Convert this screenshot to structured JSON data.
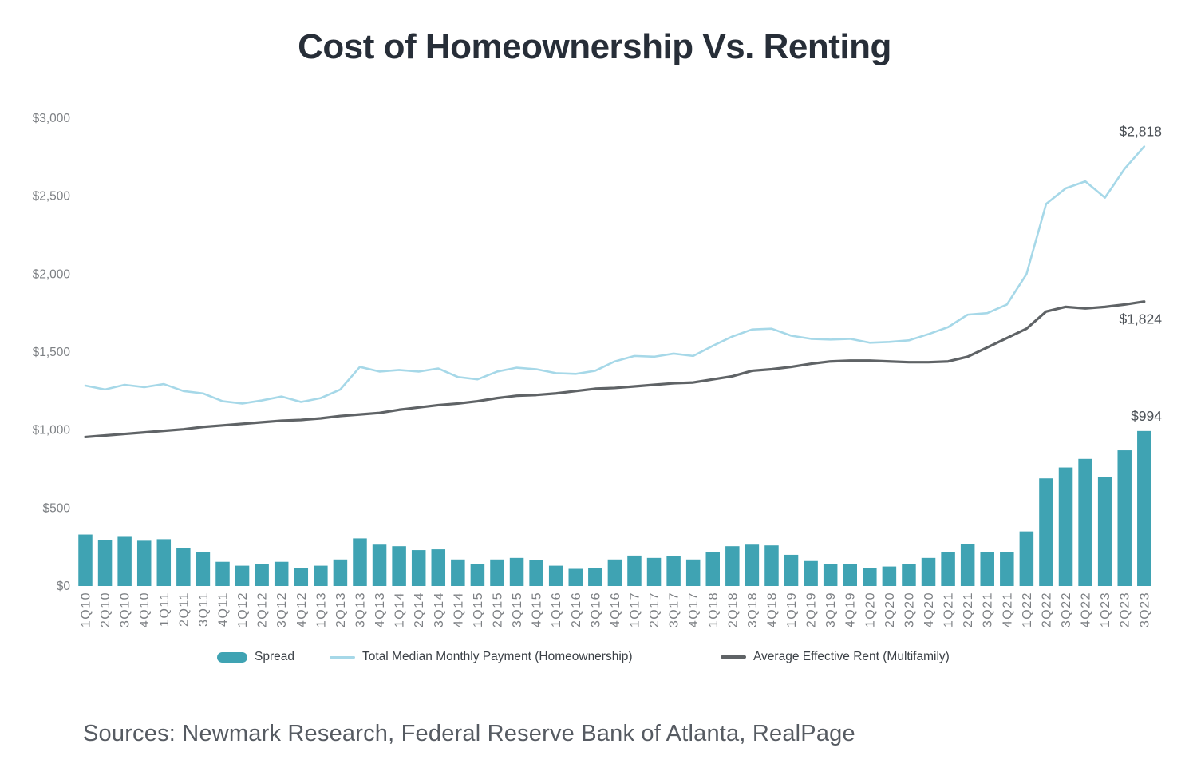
{
  "title": "Cost of Homeownership Vs. Renting",
  "sources": "Sources: Newmark Research, Federal Reserve Bank of Atlanta, RealPage",
  "colors": {
    "bar_teal": "#3FA3B3",
    "payment_line": "#A6D8E8",
    "rent_line": "#5F6366",
    "axis_label": "#7d8084",
    "data_label": "#4b5056",
    "title_text": "#272e38",
    "sources_text": "#565b62"
  },
  "legend": [
    {
      "label": "Spread",
      "swatch": "bar",
      "color": "#3FA3B3"
    },
    {
      "label": "Total Median Monthly Payment (Homeownership)",
      "swatch": "line",
      "color": "#A6D8E8"
    },
    {
      "label": "Average Effective Rent (Multifamily)",
      "swatch": "line",
      "color": "#5F6366"
    }
  ],
  "chart_data": {
    "type": "bar",
    "subtype": "combo-bar-lines",
    "title": "Cost of Homeownership Vs. Renting",
    "xlabel": "",
    "ylabel": "",
    "ylim": [
      0,
      3000
    ],
    "grid": false,
    "legend_position": "bottom",
    "yticks": [
      {
        "value": 0,
        "label": "$0"
      },
      {
        "value": 500,
        "label": "$500"
      },
      {
        "value": 1000,
        "label": "$1,000"
      },
      {
        "value": 1500,
        "label": "$1,500"
      },
      {
        "value": 2000,
        "label": "$2,000"
      },
      {
        "value": 2500,
        "label": "$2,500"
      },
      {
        "value": 3000,
        "label": "$3,000"
      }
    ],
    "categories": [
      "1Q10",
      "2Q10",
      "3Q10",
      "4Q10",
      "1Q11",
      "2Q11",
      "3Q11",
      "4Q11",
      "1Q12",
      "2Q12",
      "3Q12",
      "4Q12",
      "1Q13",
      "2Q13",
      "3Q13",
      "4Q13",
      "1Q14",
      "2Q14",
      "3Q14",
      "4Q14",
      "1Q15",
      "2Q15",
      "3Q15",
      "4Q15",
      "1Q16",
      "2Q16",
      "3Q16",
      "4Q16",
      "1Q17",
      "2Q17",
      "3Q17",
      "4Q17",
      "1Q18",
      "2Q18",
      "3Q18",
      "4Q18",
      "1Q19",
      "2Q19",
      "3Q19",
      "4Q19",
      "1Q20",
      "2Q20",
      "3Q20",
      "4Q20",
      "1Q21",
      "2Q21",
      "3Q21",
      "4Q21",
      "1Q22",
      "2Q22",
      "3Q22",
      "4Q22",
      "1Q23",
      "2Q23",
      "3Q23"
    ],
    "series": [
      {
        "name": "Spread",
        "type": "bar",
        "color": "#3FA3B3",
        "values": [
          330,
          295,
          315,
          290,
          300,
          245,
          215,
          155,
          130,
          140,
          155,
          115,
          130,
          170,
          305,
          265,
          255,
          230,
          235,
          170,
          140,
          170,
          180,
          165,
          130,
          110,
          115,
          170,
          195,
          180,
          190,
          170,
          215,
          255,
          265,
          260,
          200,
          160,
          140,
          140,
          115,
          125,
          140,
          180,
          220,
          270,
          220,
          215,
          350,
          690,
          760,
          815,
          700,
          870,
          994
        ]
      },
      {
        "name": "Total Median Monthly Payment (Homeownership)",
        "type": "line",
        "color": "#A6D8E8",
        "values": [
          1285,
          1260,
          1290,
          1275,
          1295,
          1250,
          1235,
          1185,
          1170,
          1190,
          1215,
          1180,
          1205,
          1260,
          1405,
          1375,
          1385,
          1375,
          1395,
          1340,
          1325,
          1375,
          1400,
          1390,
          1365,
          1360,
          1380,
          1440,
          1475,
          1470,
          1490,
          1475,
          1540,
          1600,
          1645,
          1650,
          1605,
          1585,
          1580,
          1585,
          1560,
          1565,
          1575,
          1615,
          1660,
          1740,
          1750,
          1805,
          2000,
          2450,
          2550,
          2595,
          2490,
          2675,
          2818
        ]
      },
      {
        "name": "Average Effective Rent (Multifamily)",
        "type": "line",
        "color": "#5F6366",
        "values": [
          955,
          965,
          975,
          985,
          995,
          1005,
          1020,
          1030,
          1040,
          1050,
          1060,
          1065,
          1075,
          1090,
          1100,
          1110,
          1130,
          1145,
          1160,
          1170,
          1185,
          1205,
          1220,
          1225,
          1235,
          1250,
          1265,
          1270,
          1280,
          1290,
          1300,
          1305,
          1325,
          1345,
          1380,
          1390,
          1405,
          1425,
          1440,
          1445,
          1445,
          1440,
          1435,
          1435,
          1440,
          1470,
          1530,
          1590,
          1650,
          1760,
          1790,
          1780,
          1790,
          1805,
          1824
        ]
      }
    ],
    "annotations": [
      {
        "text": "$2,818",
        "series": 1,
        "point": 54,
        "position": "above-line"
      },
      {
        "text": "$1,824",
        "series": 2,
        "point": 54,
        "position": "below-line"
      },
      {
        "text": "$994",
        "series": 0,
        "point": 54,
        "position": "above-bar"
      }
    ]
  }
}
